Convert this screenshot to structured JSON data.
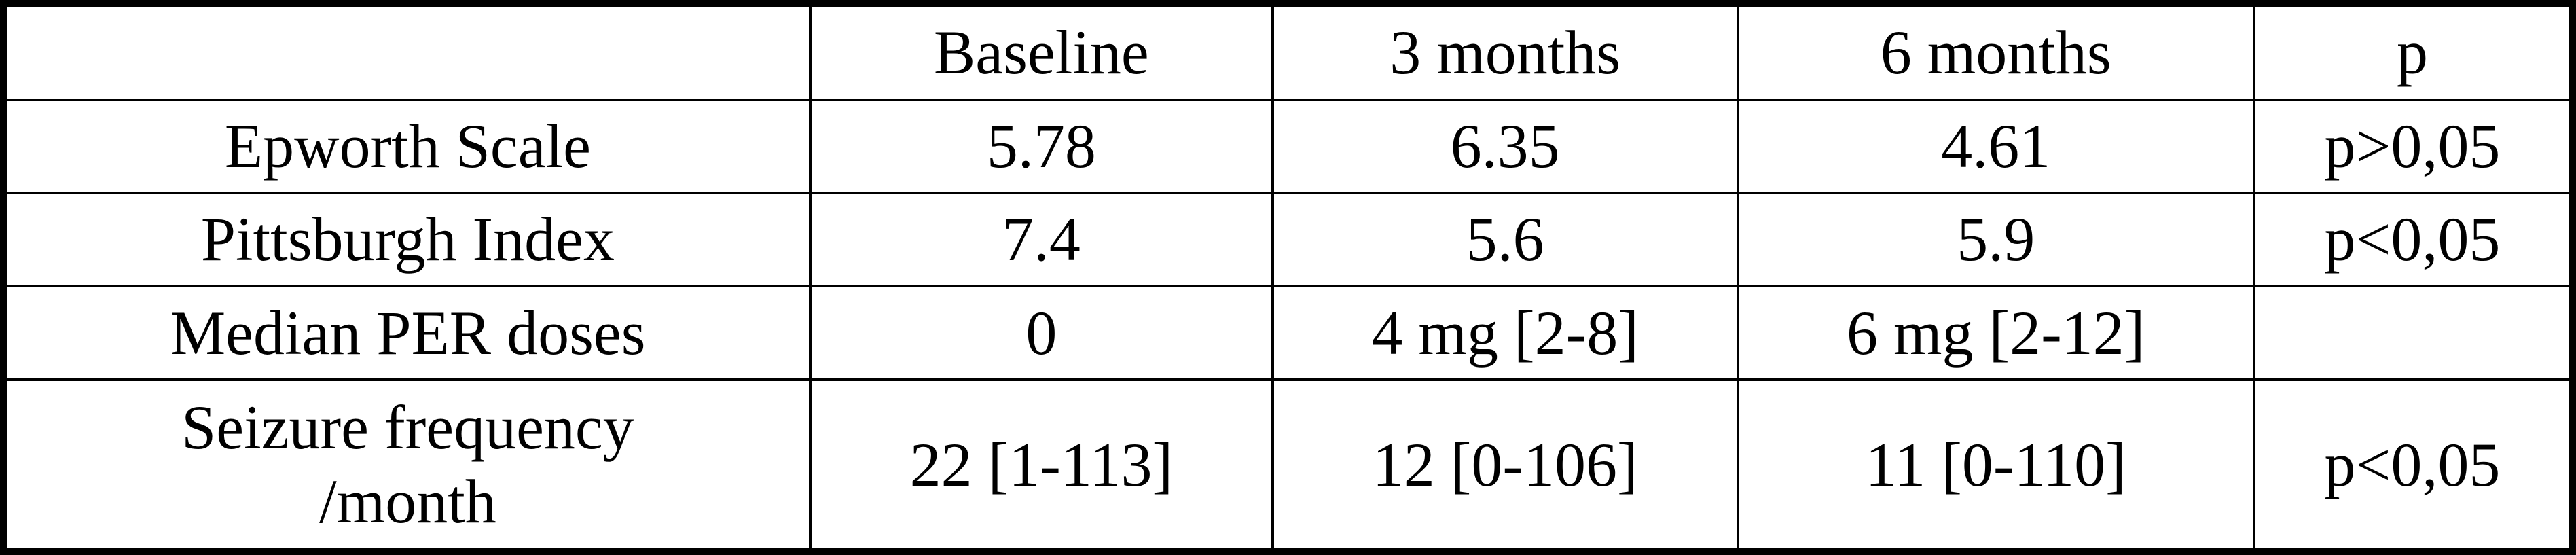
{
  "table": {
    "header": [
      "",
      "Baseline",
      "3 months",
      "6 months",
      "p"
    ],
    "rows": [
      {
        "label": "Epworth Scale",
        "values": [
          "5.78",
          "6.35",
          "4.61",
          "p>0,05"
        ]
      },
      {
        "label": "Pittsburgh Index",
        "values": [
          "7.4",
          "5.6",
          "5.9",
          "p<0,05"
        ]
      },
      {
        "label": "Median PER doses",
        "values": [
          "0",
          "4 mg [2-8]",
          "6 mg [2-12]",
          ""
        ]
      },
      {
        "label": "Seizure frequency\n/month",
        "values": [
          "22 [1-113]",
          "12 [0-106]",
          "11 [0-110]",
          "p<0,05"
        ]
      }
    ]
  },
  "chart_data": {
    "type": "table",
    "columns": [
      "",
      "Baseline",
      "3 months",
      "6 months",
      "p"
    ],
    "rows": [
      [
        "Epworth Scale",
        "5.78",
        "6.35",
        "4.61",
        "p>0,05"
      ],
      [
        "Pittsburgh Index",
        "7.4",
        "5.6",
        "5.9",
        "p<0,05"
      ],
      [
        "Median PER doses",
        "0",
        "4 mg [2-8]",
        "6 mg [2-12]",
        ""
      ],
      [
        "Seizure frequency /month",
        "22 [1-113]",
        "12 [0-106]",
        "11 [0-110]",
        "p<0,05"
      ]
    ]
  },
  "colors": {
    "border": "#000000",
    "text": "#000000",
    "background": "#ffffff"
  }
}
